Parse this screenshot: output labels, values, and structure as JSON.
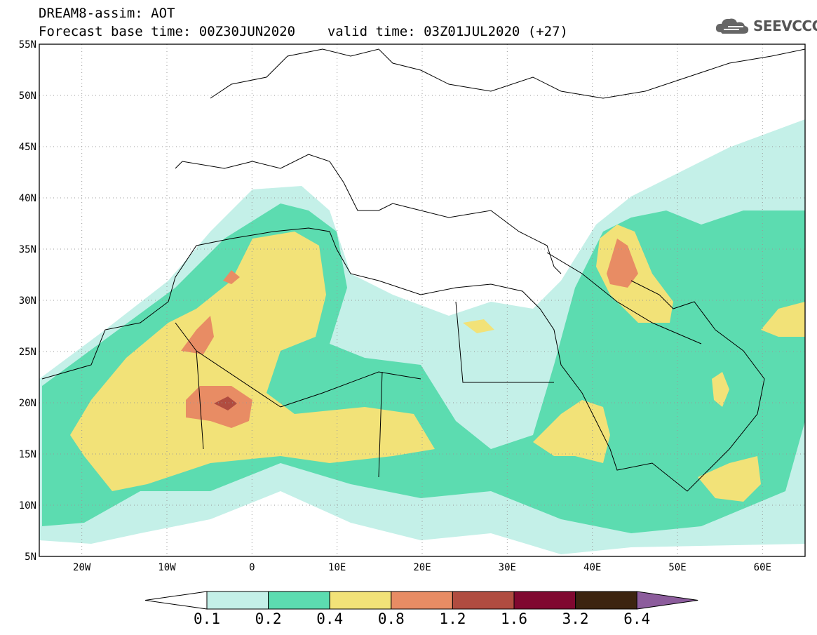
{
  "title": {
    "line1": "DREAM8-assim: AOT",
    "base_time": "Forecast base time: 00Z30JUN2020",
    "valid_time": "valid time: 03Z01JUL2020 (+27)"
  },
  "logo": {
    "text": "SEEVCCC",
    "icon": "cloud-icon"
  },
  "map": {
    "lon_range": [
      -25,
      65
    ],
    "lat_range": [
      5,
      55
    ],
    "lat_ticks": [
      "5N",
      "10N",
      "15N",
      "20N",
      "25N",
      "30N",
      "35N",
      "40N",
      "45N",
      "50N",
      "55N"
    ],
    "lon_ticks": [
      "20W",
      "10W",
      "0",
      "10E",
      "20E",
      "30E",
      "40E",
      "50E",
      "60E"
    ]
  },
  "colorbar": {
    "labels": [
      "0.1",
      "0.2",
      "0.4",
      "0.8",
      "1.2",
      "1.6",
      "3.2",
      "6.4"
    ],
    "colors": [
      "#ffffff",
      "#c4f0e8",
      "#5cdcb0",
      "#f2e278",
      "#e88c64",
      "#b04c40",
      "#800830",
      "#3c2410",
      "#8c5c9c"
    ]
  }
}
